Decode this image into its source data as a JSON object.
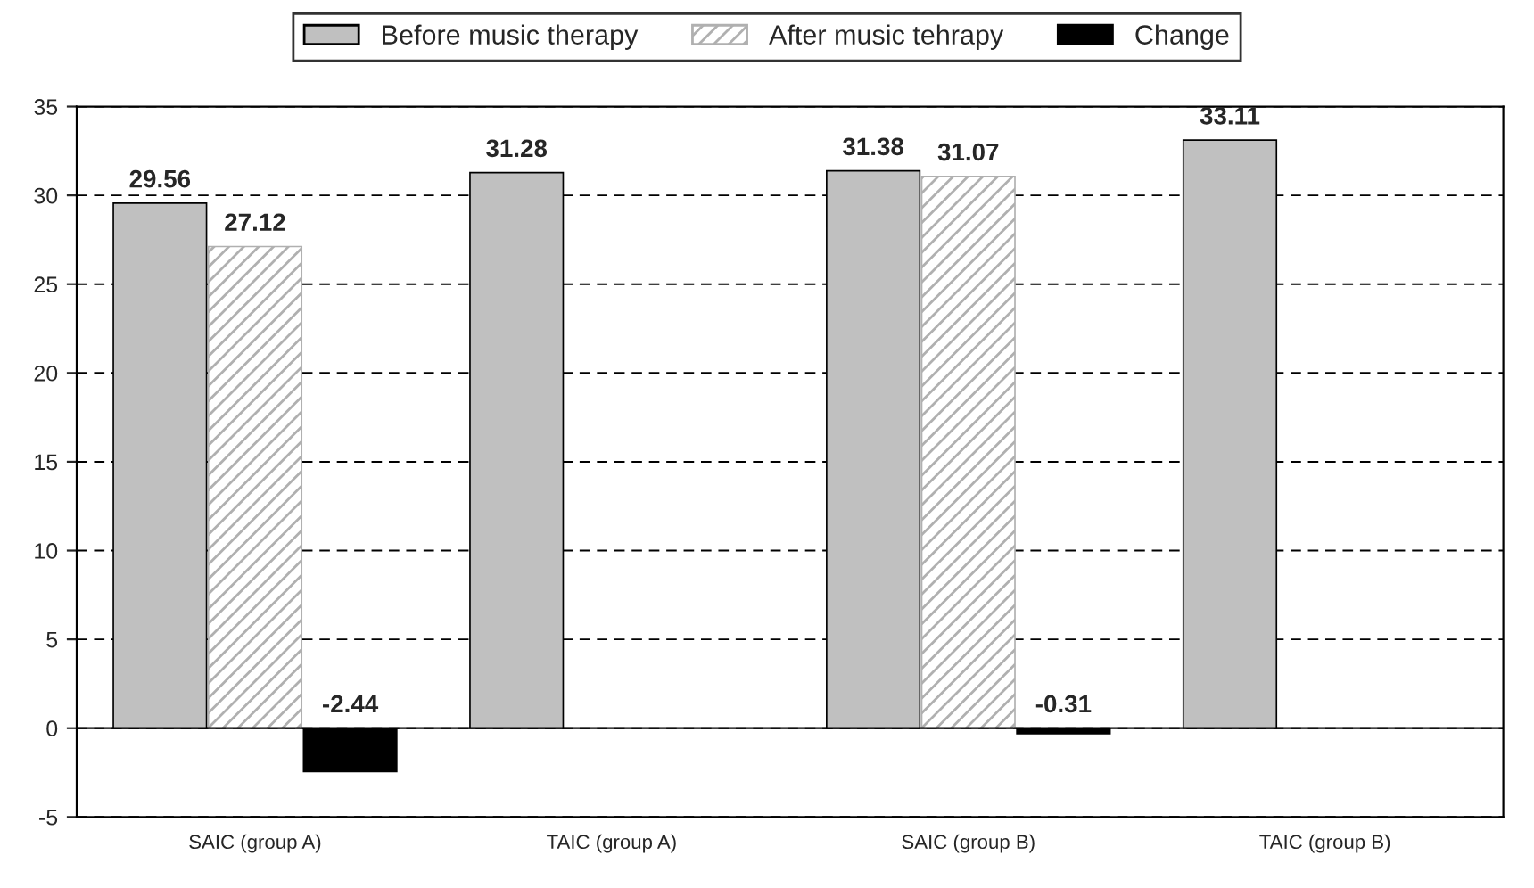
{
  "chart_data": {
    "type": "bar",
    "categories": [
      "SAIC (group A)",
      "TAIC (group A)",
      "SAIC (group B)",
      "TAIC (group B)"
    ],
    "series": [
      {
        "name": "Before music therapy",
        "color": "#c0c0c0",
        "values": [
          29.56,
          31.28,
          31.38,
          33.11
        ]
      },
      {
        "name": "After music tehrapy",
        "color": "#b0b0b0",
        "values": [
          27.12,
          null,
          31.07,
          null
        ]
      },
      {
        "name": "Change",
        "color": "#000000",
        "values": [
          -2.44,
          null,
          -0.31,
          null
        ]
      }
    ],
    "ylim": [
      -5,
      35
    ],
    "yticks": [
      -5,
      0,
      5,
      10,
      15,
      20,
      25,
      30,
      35
    ],
    "grid": "y",
    "legend": "top",
    "data_labels": true
  }
}
